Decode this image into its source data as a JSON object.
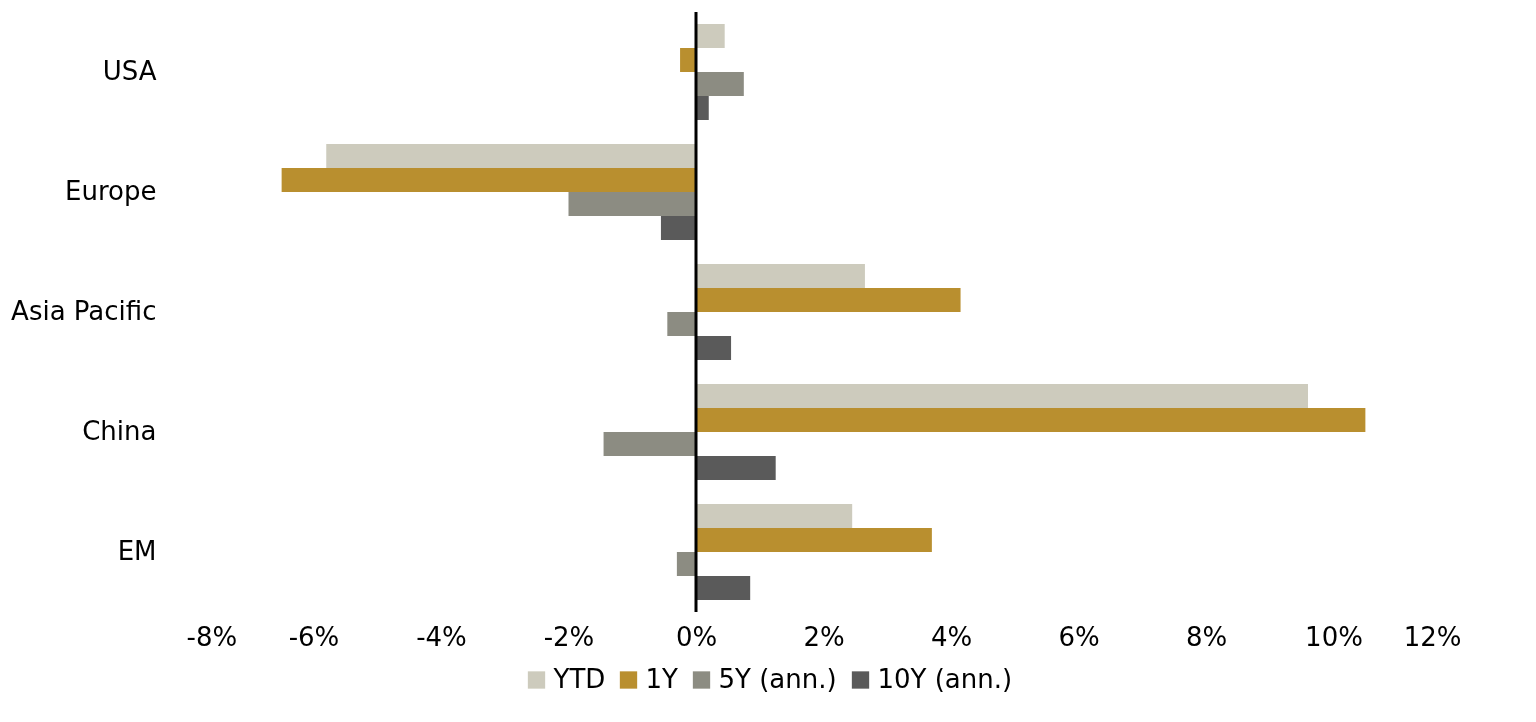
{
  "chart_data": {
    "type": "bar",
    "orientation": "horizontal",
    "categories": [
      "USA",
      "Europe",
      "Asia Pacific",
      "China",
      "EM"
    ],
    "series": [
      {
        "name": "YTD",
        "color": "#cdcbbd",
        "values": [
          0.45,
          -5.8,
          2.65,
          9.6,
          2.45
        ]
      },
      {
        "name": "1Y",
        "color": "#b98f2f",
        "values": [
          -0.25,
          -6.5,
          4.15,
          10.5,
          3.7
        ]
      },
      {
        "name": "5Y (ann.)",
        "color": "#8c8c82",
        "values": [
          0.75,
          -2.0,
          -0.45,
          -1.45,
          -0.3
        ]
      },
      {
        "name": "10Y (ann.)",
        "color": "#5a5a5a",
        "values": [
          0.2,
          -0.55,
          0.55,
          1.25,
          0.85
        ]
      }
    ],
    "xlim": [
      -8,
      12
    ],
    "xticks": [
      {
        "value": -8,
        "label": "-8%"
      },
      {
        "value": -6,
        "label": "-6%"
      },
      {
        "value": -4,
        "label": "-4%"
      },
      {
        "value": -2,
        "label": "-2%"
      },
      {
        "value": 0,
        "label": "0%"
      },
      {
        "value": 2,
        "label": "2%"
      },
      {
        "value": 4,
        "label": "4%"
      },
      {
        "value": 6,
        "label": "6%"
      },
      {
        "value": 8,
        "label": "8%"
      },
      {
        "value": 10,
        "label": "10%"
      },
      {
        "value": 12,
        "label": "12%"
      }
    ],
    "ref_lines": [
      {
        "axis": "x",
        "value": 0,
        "color": "#000000"
      }
    ],
    "grid": false,
    "legend": "bottom"
  }
}
